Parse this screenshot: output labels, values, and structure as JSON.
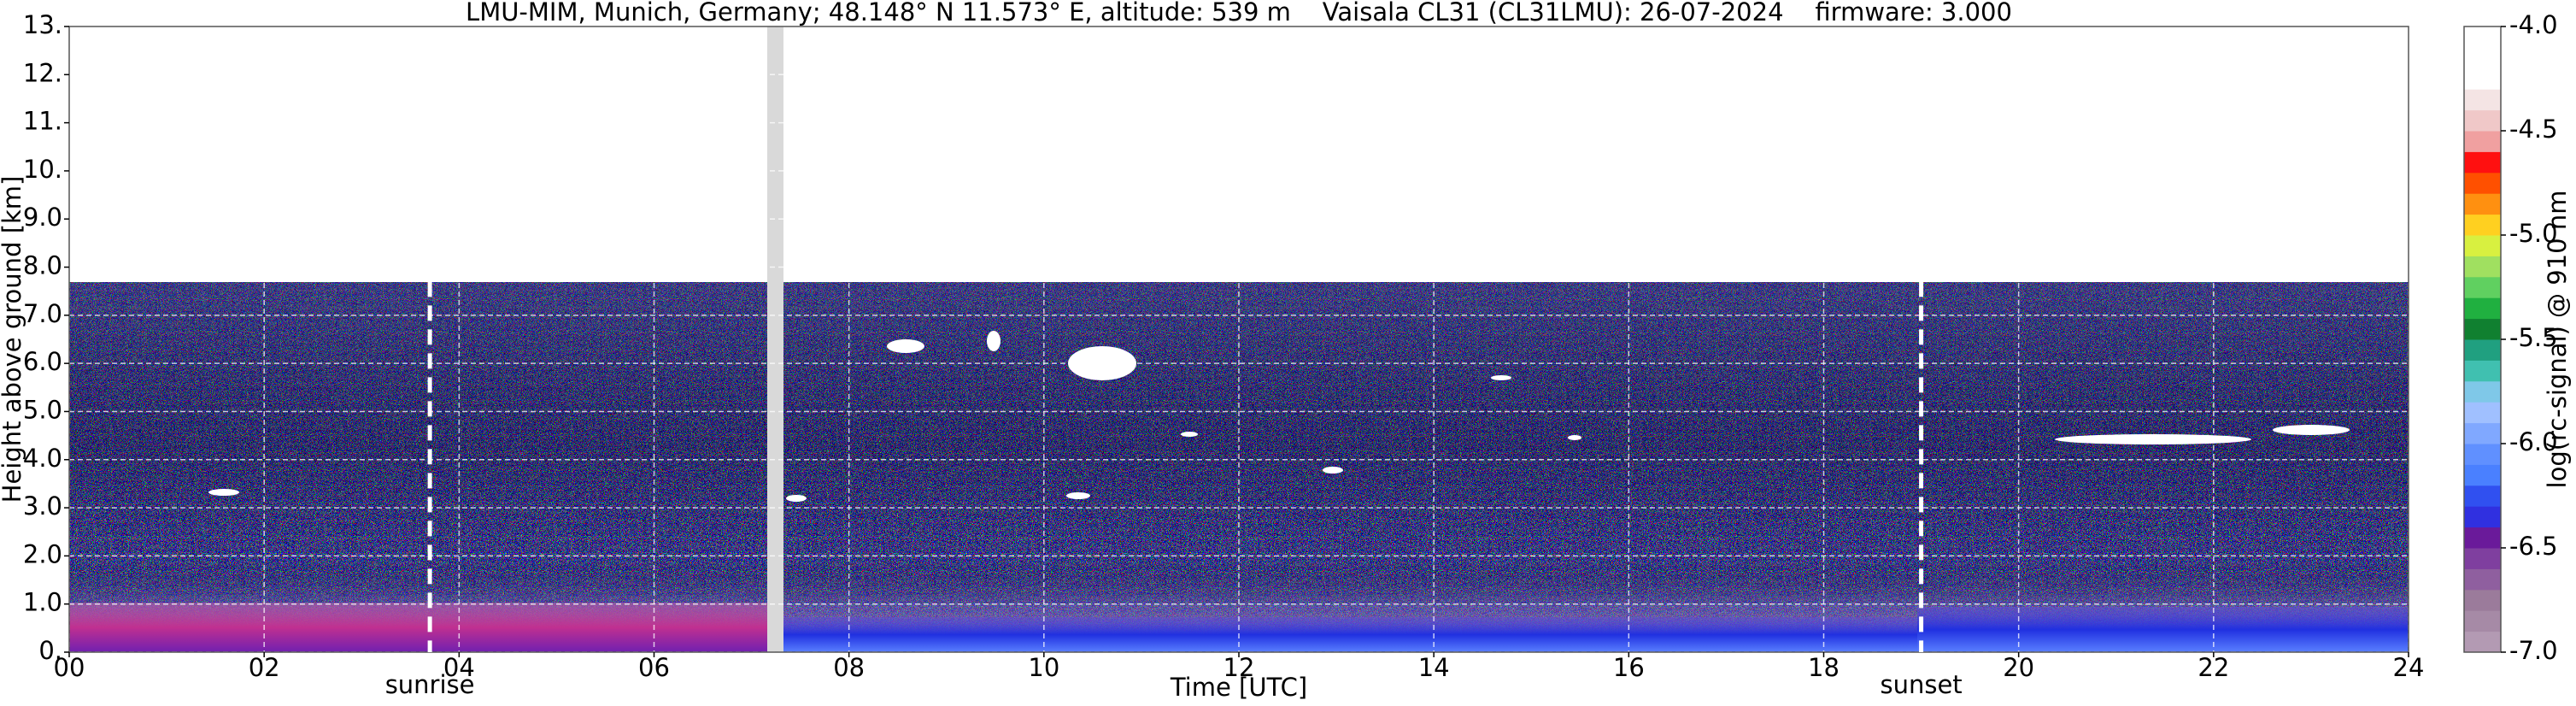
{
  "chart_data": {
    "type": "heatmap",
    "title": "LMU-MIM, Munich, Germany; 48.148° N 11.573° E, altitude: 539 m    Vaisala CL31 (CL31LMU): 26-07-2024    firmware: 3.000",
    "x_label": "Time [UTC]",
    "y_label": "Height above ground [km]",
    "xlim": [
      0,
      24
    ],
    "xticks": [
      {
        "value": 0,
        "label": "00"
      },
      {
        "value": 2,
        "label": "02"
      },
      {
        "value": 4,
        "label": "04"
      },
      {
        "value": 6,
        "label": "06"
      },
      {
        "value": 8,
        "label": "08"
      },
      10,
      12,
      14,
      16,
      18,
      20,
      22,
      24
    ],
    "ylim": [
      0,
      13
    ],
    "yticks": [
      {
        "value": 0,
        "label": "0."
      },
      {
        "value": 1,
        "label": "1.0"
      },
      {
        "value": 2,
        "label": "2.0"
      },
      {
        "value": 3,
        "label": "3.0"
      },
      {
        "value": 4,
        "label": "4.0"
      },
      {
        "value": 5,
        "label": "5.0"
      },
      {
        "value": 6,
        "label": "6.0"
      },
      {
        "value": 7,
        "label": "7.0"
      },
      {
        "value": 8,
        "label": "8.0"
      },
      {
        "value": 9,
        "label": "9.0"
      },
      {
        "value": 10,
        "label": "10."
      },
      {
        "value": 11,
        "label": "11."
      },
      {
        "value": 12,
        "label": "12."
      },
      {
        "value": 13,
        "label": "13."
      }
    ],
    "grid": true,
    "annotations": [
      {
        "x": 3.7,
        "label": "sunrise"
      },
      {
        "x": 19.0,
        "label": "sunset"
      }
    ],
    "colorbar": {
      "label": "log(rc-signal) @ 910 nm",
      "clim": [
        -7,
        -4
      ],
      "ticks": [
        {
          "value": -7,
          "label": "-7.0"
        },
        {
          "value": -6.5,
          "label": "-6.5"
        },
        {
          "value": -6,
          "label": "-6.0"
        },
        {
          "value": -5.5,
          "label": "-5.5"
        },
        {
          "value": -5,
          "label": "-5.0"
        },
        {
          "value": -4.5,
          "label": "-4.5"
        },
        {
          "value": -4,
          "label": "-4.0"
        }
      ],
      "colors": [
        "#b39ab3",
        "#a68aa6",
        "#9b7b9b",
        "#8f5f9f",
        "#7f3f9f",
        "#6a1a9a",
        "#3030e0",
        "#3050f0",
        "#4a80ff",
        "#6090ff",
        "#80a8ff",
        "#a0c0ff",
        "#7fc8e8",
        "#40c0b0",
        "#20a080",
        "#108030",
        "#20b040",
        "#60d060",
        "#a0e060",
        "#d8f040",
        "#ffd020",
        "#ff9010",
        "#ff5000",
        "#ff1010",
        "#f0a0a0",
        "#f0c8c8",
        "#f4e4e4",
        "#ffffff",
        "#ffffff",
        "#ffffff"
      ]
    }
  }
}
